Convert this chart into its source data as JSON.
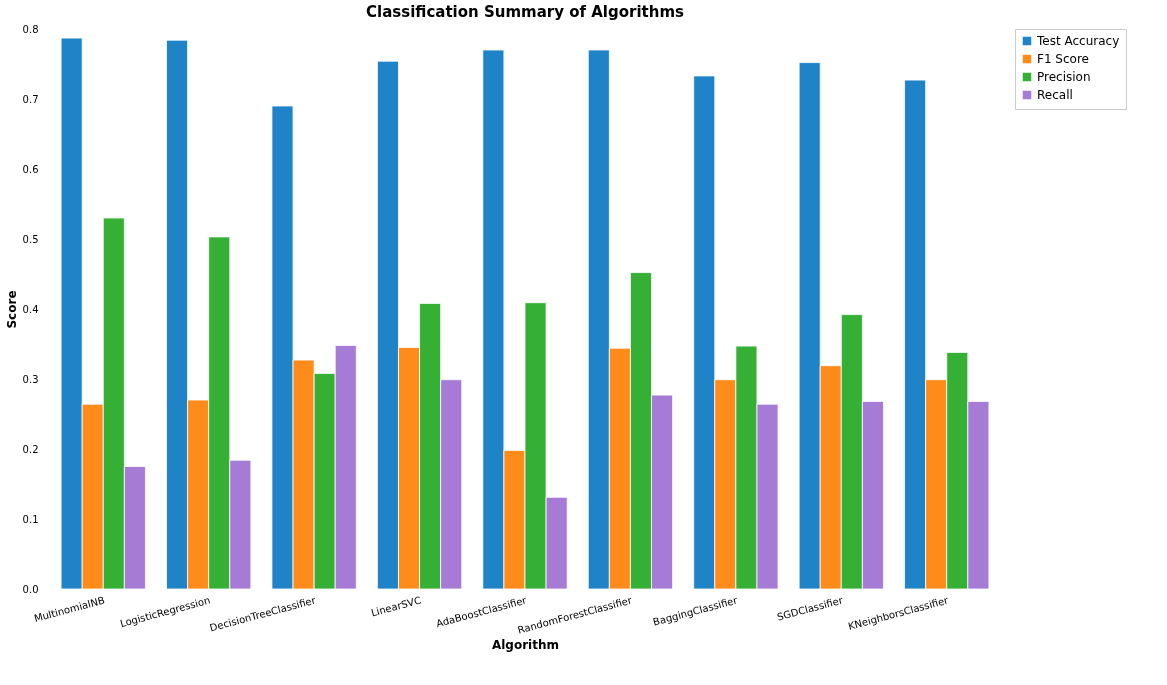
{
  "chart_data": {
    "type": "bar",
    "title": "Classification Summary of Algorithms",
    "xlabel": "Algorithm",
    "ylabel": "Score",
    "categories": [
      "MultinomialNB",
      "LogisticRegression",
      "DecisionTreeClassifier",
      "LinearSVC",
      "AdaBoostClassifier",
      "RandomForestClassifier",
      "BaggingClassifier",
      "SGDClassifier",
      "KNeighborsClassifier"
    ],
    "series": [
      {
        "name": "Test Accuracy",
        "color": "#1f83c8",
        "values": [
          0.787,
          0.784,
          0.69,
          0.754,
          0.77,
          0.77,
          0.733,
          0.752,
          0.727
        ]
      },
      {
        "name": "F1 Score",
        "color": "#ff8c1a",
        "values": [
          0.264,
          0.27,
          0.327,
          0.345,
          0.198,
          0.344,
          0.299,
          0.319,
          0.299
        ]
      },
      {
        "name": "Precision",
        "color": "#35b035",
        "values": [
          0.53,
          0.503,
          0.308,
          0.408,
          0.409,
          0.452,
          0.347,
          0.392,
          0.338
        ]
      },
      {
        "name": "Recall",
        "color": "#a67bd6",
        "values": [
          0.175,
          0.184,
          0.348,
          0.299,
          0.131,
          0.277,
          0.264,
          0.268,
          0.268
        ]
      }
    ],
    "ylim": [
      0,
      0.8
    ],
    "yticks": [
      {
        "value": 0,
        "label": "0.0"
      },
      0.1,
      0.2,
      0.3,
      0.4,
      0.5,
      0.6,
      0.7,
      0.8
    ],
    "legend": "top right",
    "grid": false
  }
}
